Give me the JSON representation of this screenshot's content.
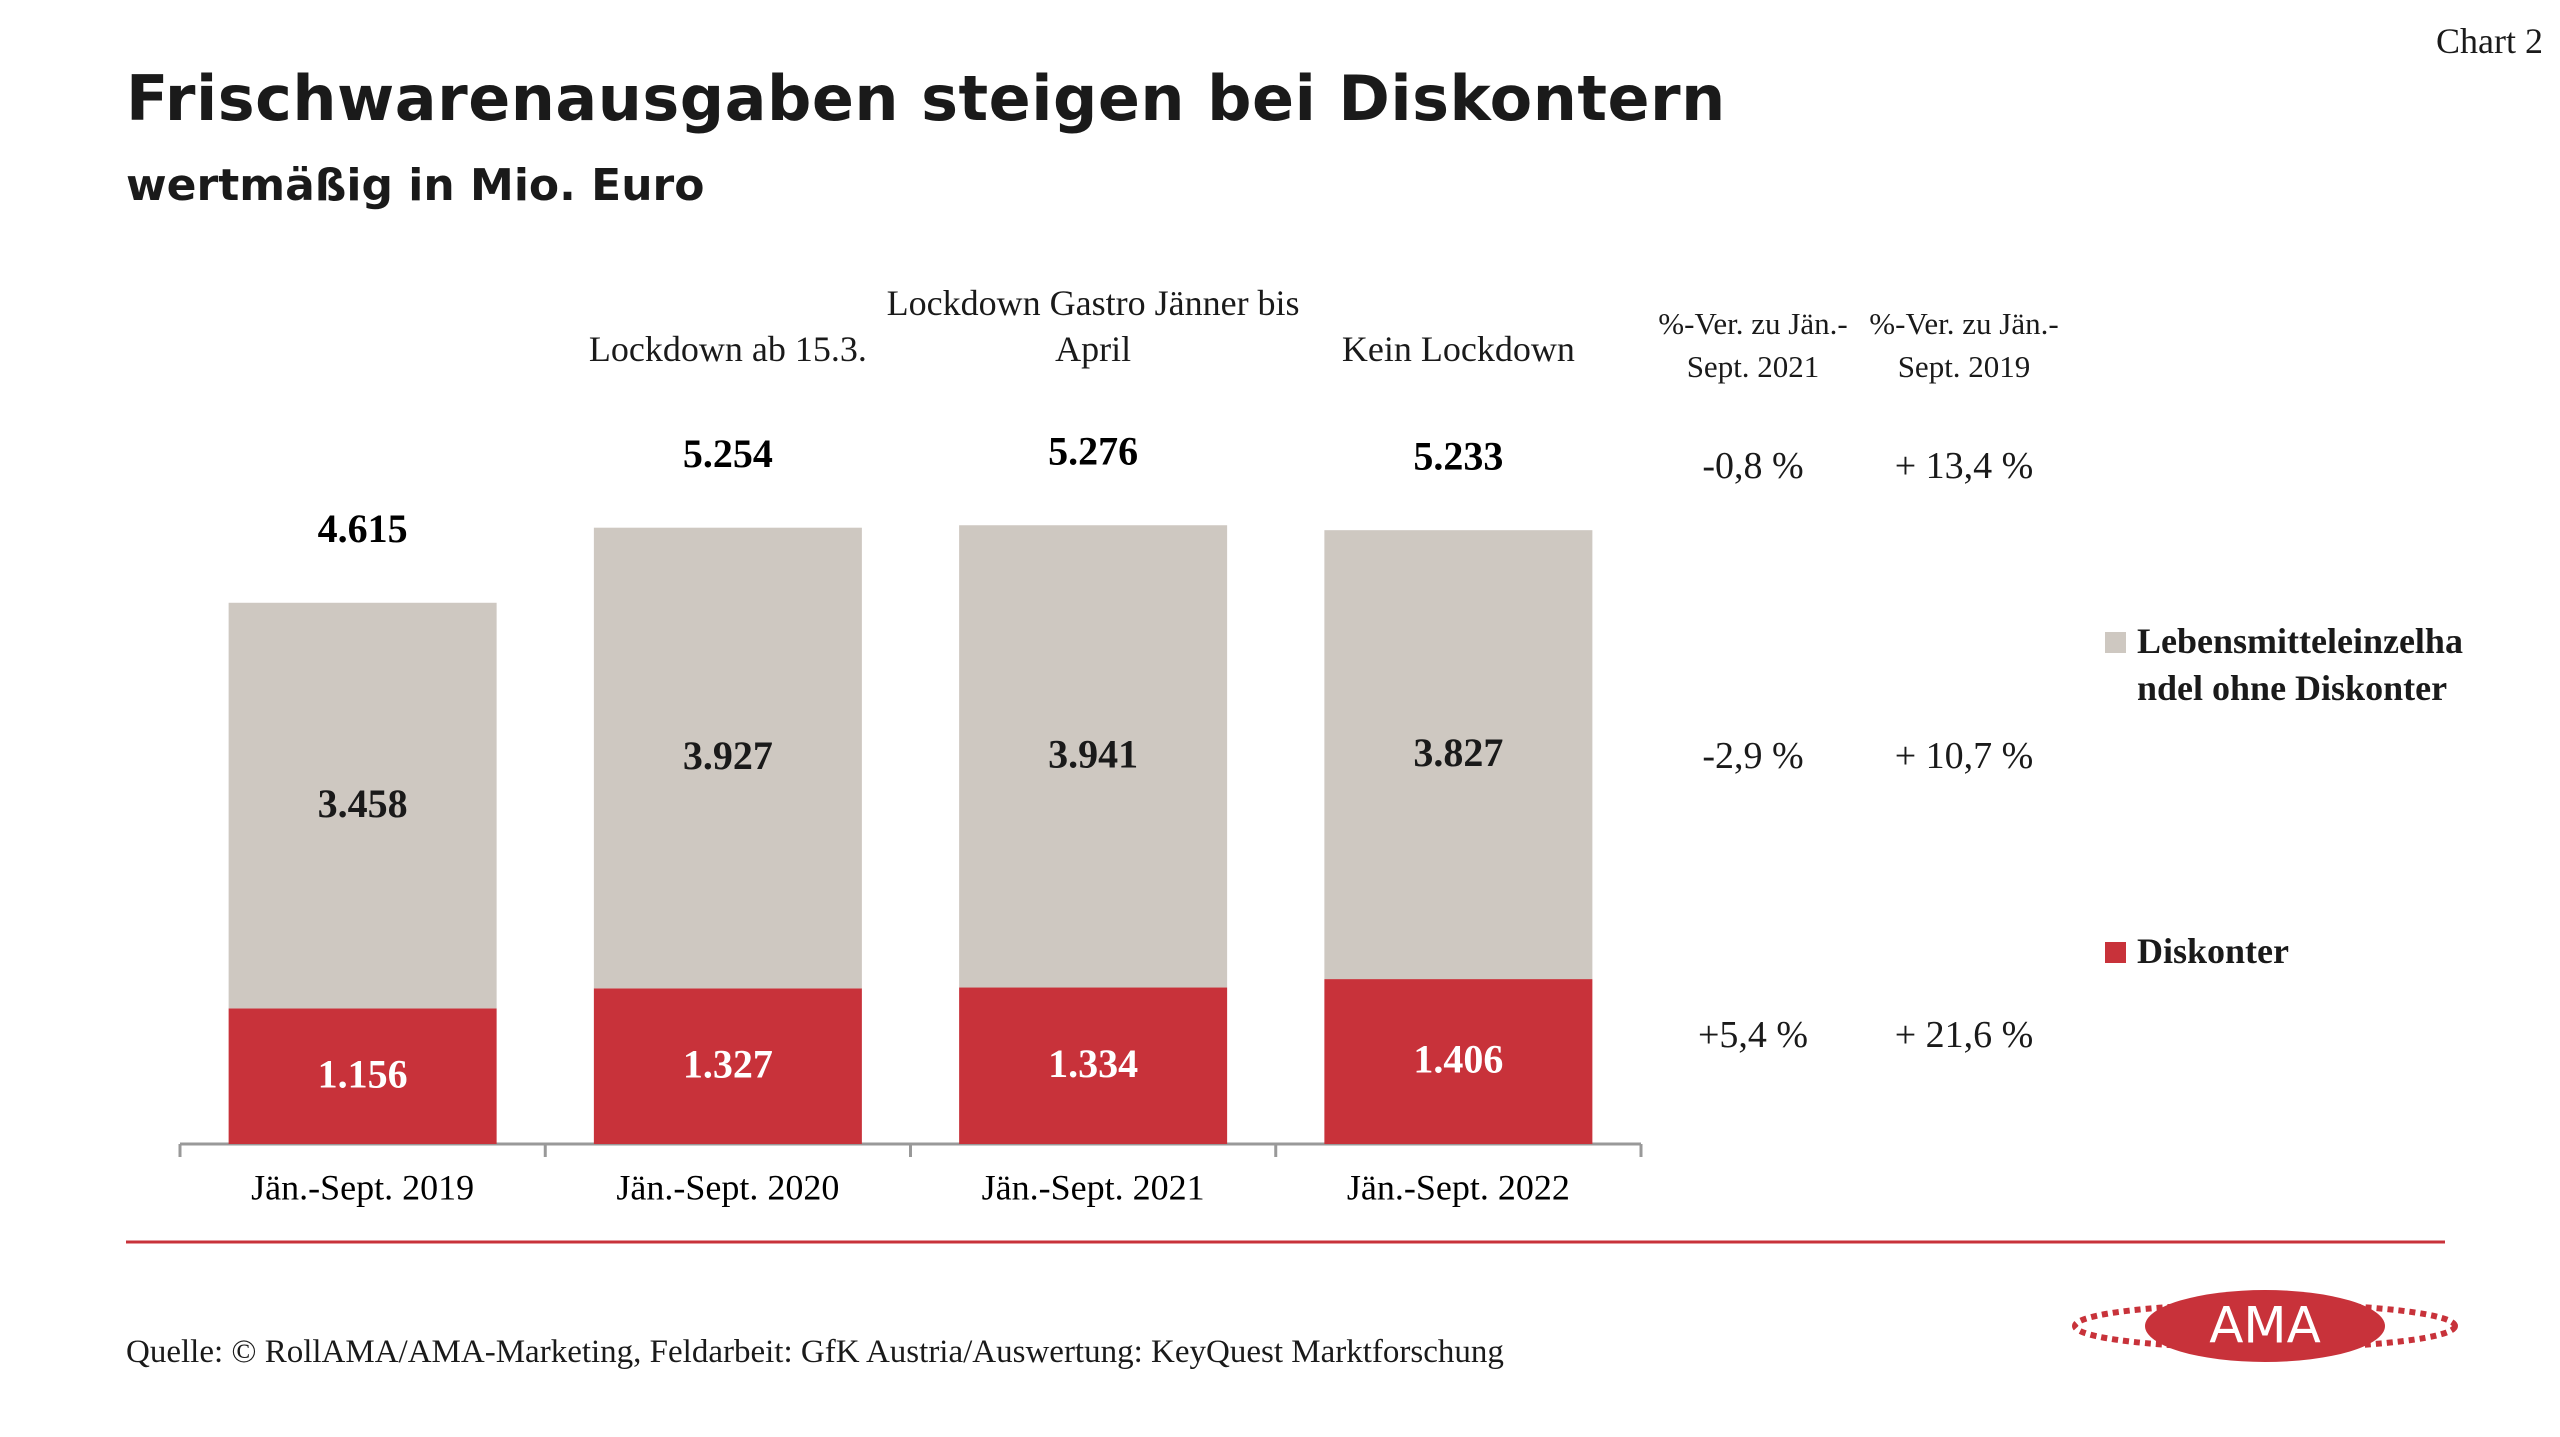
{
  "chart_label": "Chart 2",
  "chart_data": {
    "type": "bar",
    "stacked": true,
    "title": "Frischwarenausgaben steigen bei Diskontern",
    "subtitle": "wertmäßig in Mio. Euro",
    "categories": [
      "Jän.-Sept. 2019",
      "Jän.-Sept. 2020",
      "Jän.-Sept. 2021",
      "Jän.-Sept. 2022"
    ],
    "annotations": [
      null,
      "Lockdown ab 15.3.",
      "Lockdown Gastro Jänner bis April",
      "Kein Lockdown"
    ],
    "series": [
      {
        "name": "Diskonter",
        "color": "#c8323a",
        "values": [
          1156,
          1327,
          1334,
          1406
        ],
        "value_labels": [
          "1.156",
          "1.327",
          "1.334",
          "1.406"
        ]
      },
      {
        "name": "Lebensmitteleinzelhandel ohne Diskonter",
        "color": "#cec8c1",
        "values": [
          3458,
          3927,
          3941,
          3827
        ],
        "value_labels": [
          "3.458",
          "3.927",
          "3.941",
          "3.827"
        ]
      }
    ],
    "totals": {
      "values": [
        4615,
        5254,
        5276,
        5233
      ],
      "value_labels": [
        "4.615",
        "5.254",
        "5.276",
        "5.233"
      ]
    },
    "changes": {
      "headers": [
        "%-Ver. zu Jän.-Sept. 2021",
        "%-Ver. zu Jän.-Sept. 2019"
      ],
      "rows": [
        [
          "-0,8 %",
          "+ 13,4 %"
        ],
        [
          "-2,9 %",
          "+ 10,7 %"
        ],
        [
          "+5,4 %",
          "+ 21,6 %"
        ]
      ]
    }
  },
  "source": "Quelle: © RollAMA/AMA-Marketing, Feldarbeit: GfK Austria/Auswertung: KeyQuest Marktforschung",
  "logo": "AMA"
}
